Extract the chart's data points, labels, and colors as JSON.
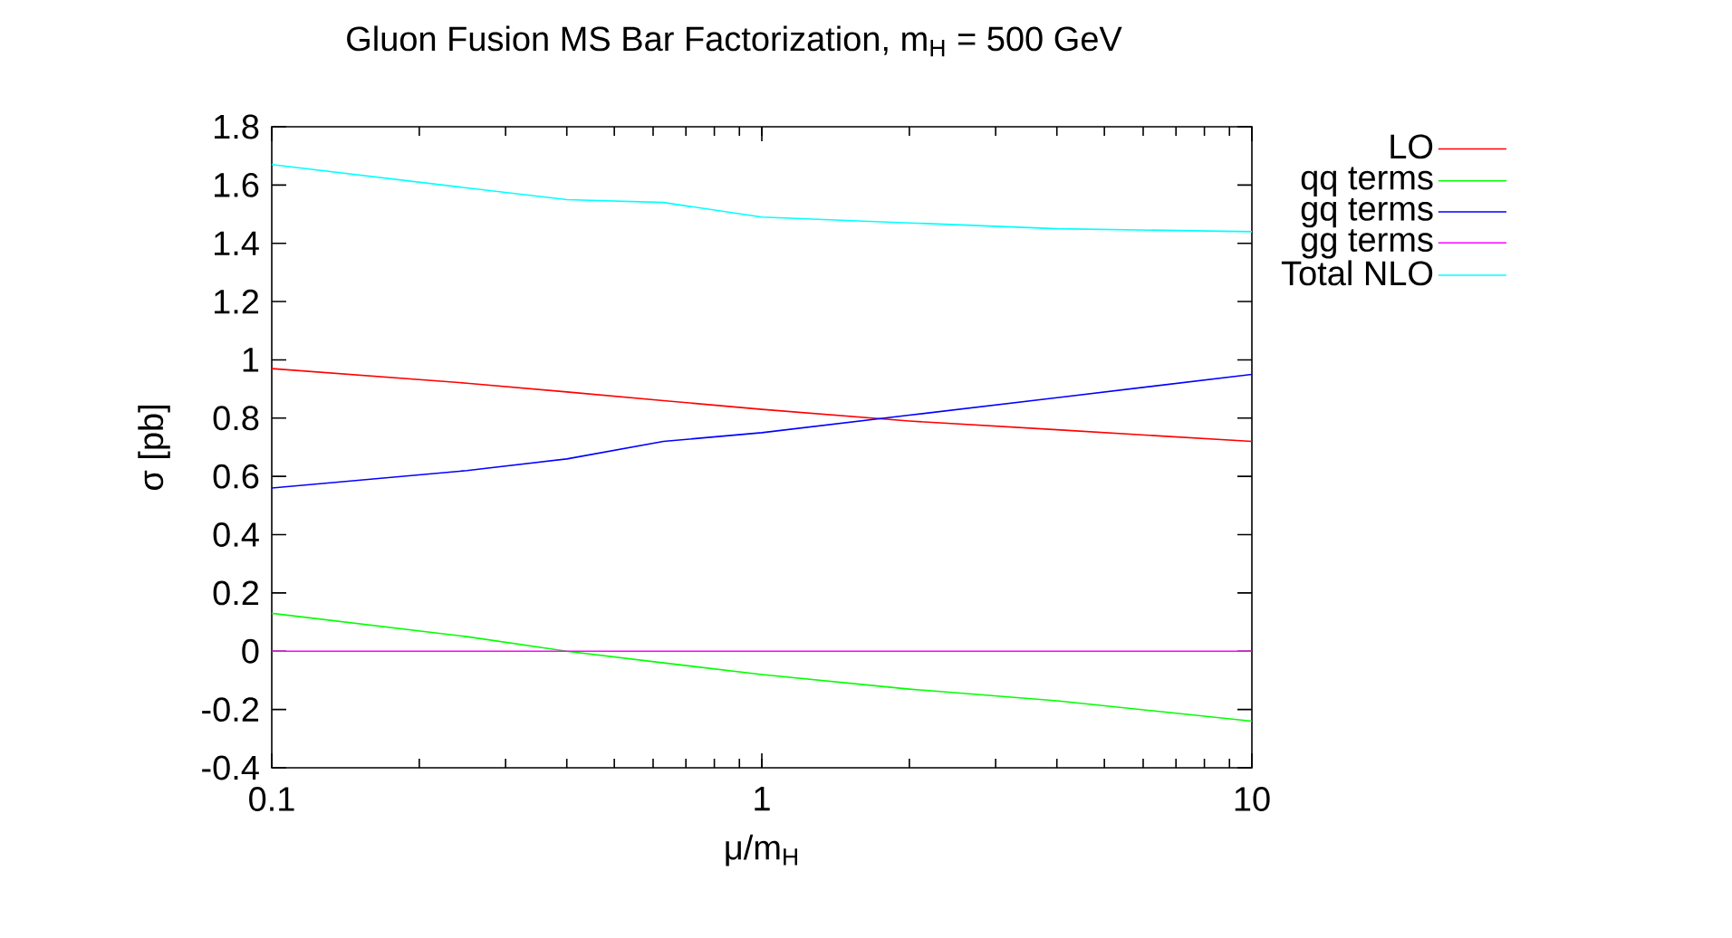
{
  "chart_data": {
    "type": "line",
    "title": "Gluon Fusion MS Bar Factorization, m$_{H}$ = 500 GeV",
    "xlabel": "μ/m$_{H}$",
    "ylabel": "σ [pb]",
    "x": [
      0.1,
      0.25,
      0.4,
      0.63,
      1,
      2,
      4,
      10
    ],
    "series": [
      {
        "name": "LO",
        "color": "#ff0000",
        "values": [
          0.97,
          0.92,
          0.89,
          0.86,
          0.83,
          0.79,
          0.76,
          0.72
        ]
      },
      {
        "name": "qq terms",
        "color": "#00ff00",
        "values": [
          0.13,
          0.05,
          0.0,
          -0.04,
          -0.08,
          -0.13,
          -0.17,
          -0.24
        ]
      },
      {
        "name": "gq terms",
        "color": "#0000ff",
        "values": [
          0.56,
          0.62,
          0.66,
          0.72,
          0.75,
          0.81,
          0.87,
          0.95
        ]
      },
      {
        "name": "gg terms",
        "color": "#ff00ff",
        "values": [
          0,
          0,
          0,
          0,
          0,
          0,
          0,
          0
        ]
      },
      {
        "name": "Total NLO",
        "color": "#00ffff",
        "values": [
          1.67,
          1.59,
          1.55,
          1.54,
          1.49,
          1.47,
          1.45,
          1.44
        ]
      }
    ],
    "log": "x",
    "xlim": [
      0.1,
      10
    ],
    "xticks": [
      0.1,
      1,
      10
    ],
    "ylim": [
      -0.4,
      1.8
    ],
    "yticks": [
      -0.4,
      -0.2,
      0,
      0.2,
      0.4,
      0.6,
      0.8,
      1,
      1.2,
      1.4,
      1.6,
      1.8
    ],
    "legend": "right",
    "grid": false,
    "marker": "none",
    "line_style": "solid"
  }
}
